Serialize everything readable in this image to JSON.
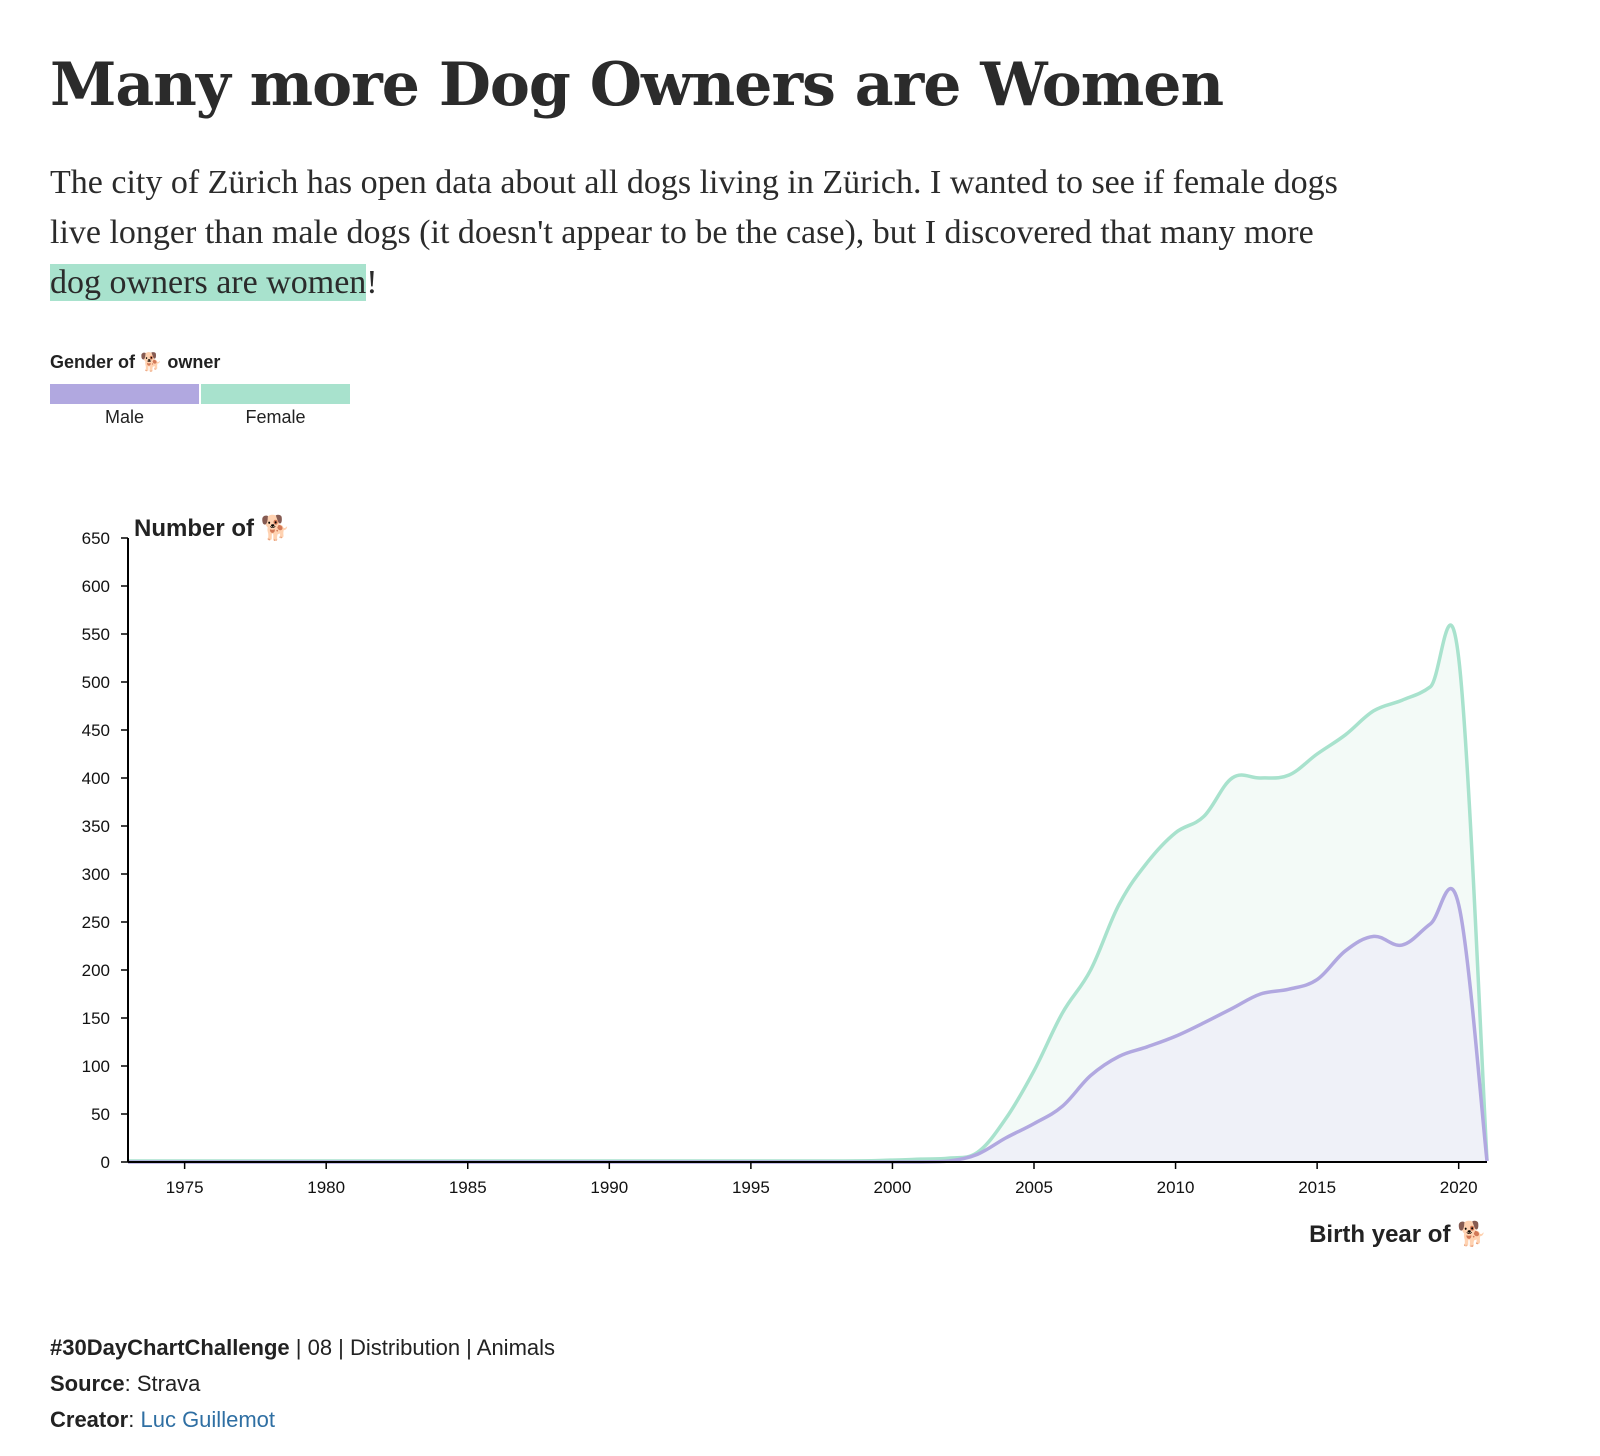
{
  "title": "Many more Dog Owners are Women",
  "intro": {
    "before": "The city of Zürich has open data about all dogs living in Zürich. I wanted to see if female dogs live longer than male dogs (it doesn't appear to be the case), but I discovered that many more ",
    "highlight": "dog owners are women",
    "after": "!"
  },
  "legend": {
    "title": "Gender of 🐕 owner",
    "items": [
      {
        "label": "Male",
        "color": "#b1a8e0"
      },
      {
        "label": "Female",
        "color": "#a8e2cd"
      }
    ]
  },
  "chart_data": {
    "type": "area",
    "ylabel": "Number of 🐕",
    "xlabel": "Birth year of 🐕",
    "xlim": [
      1973,
      2021
    ],
    "ylim": [
      0,
      650
    ],
    "xticks": [
      1975,
      1980,
      1985,
      1990,
      1995,
      2000,
      2005,
      2010,
      2015,
      2020
    ],
    "yticks": [
      0,
      50,
      100,
      150,
      200,
      250,
      300,
      350,
      400,
      450,
      500,
      550,
      600,
      650
    ],
    "grid": false,
    "series": [
      {
        "name": "Female",
        "color": "#a8e2cd",
        "fill": "#f3faf7",
        "x": [
          1973,
          1980,
          1990,
          1998,
          2000,
          2001,
          2002,
          2003,
          2004,
          2005,
          2006,
          2007,
          2008,
          2009,
          2010,
          2011,
          2012,
          2013,
          2014,
          2015,
          2016,
          2017,
          2018,
          2019,
          2020,
          2021
        ],
        "y": [
          1,
          1,
          1,
          1,
          2,
          3,
          4,
          10,
          45,
          95,
          155,
          200,
          268,
          312,
          343,
          360,
          400,
          400,
          403,
          425,
          445,
          470,
          481,
          495,
          525,
          2
        ]
      },
      {
        "name": "Male",
        "color": "#b1a8e0",
        "fill": "#eff1f8",
        "x": [
          1973,
          1980,
          1990,
          1998,
          2000,
          2001,
          2002,
          2003,
          2004,
          2005,
          2006,
          2007,
          2008,
          2009,
          2010,
          2011,
          2012,
          2013,
          2014,
          2015,
          2016,
          2017,
          2018,
          2019,
          2020,
          2021
        ],
        "y": [
          0,
          0,
          0,
          0,
          0,
          0,
          1,
          8,
          25,
          40,
          58,
          90,
          110,
          120,
          131,
          145,
          160,
          175,
          180,
          190,
          220,
          235,
          226,
          248,
          268,
          1
        ]
      }
    ]
  },
  "footer": {
    "challenge": "#30DayChartChallenge",
    "challenge_rest": " | 08 | Distribution | Animals",
    "source_label": "Source",
    "source_value": "Strava",
    "creator_label": "Creator",
    "creator_value": "Luc Guillemot"
  }
}
